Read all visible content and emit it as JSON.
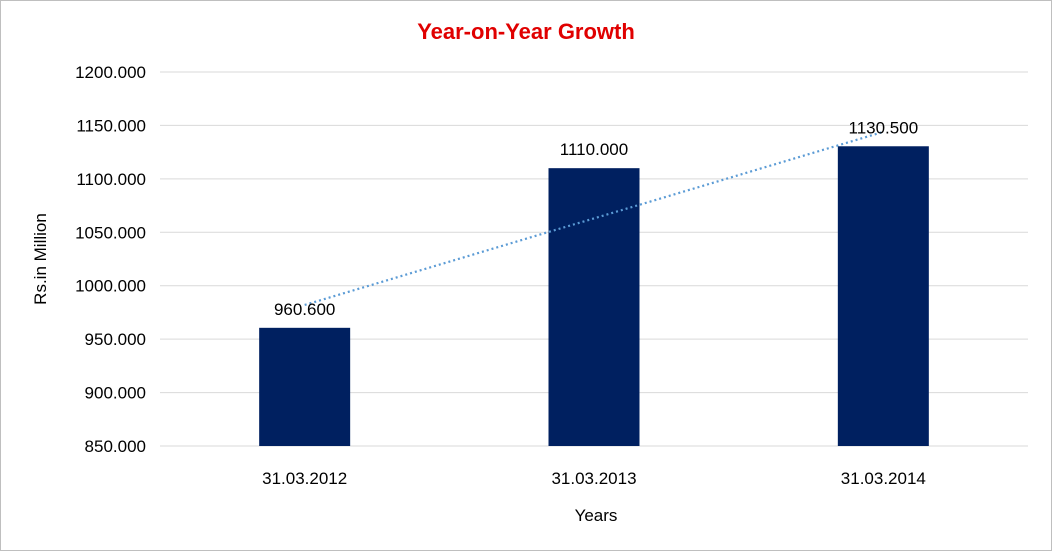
{
  "chart_data": {
    "type": "bar",
    "title": "Year-on-Year Growth",
    "xlabel": "Years",
    "ylabel": "Rs.in Million",
    "categories": [
      "31.03.2012",
      "31.03.2013",
      "31.03.2014"
    ],
    "values": [
      960.6,
      1110.0,
      1130.5
    ],
    "value_labels": [
      "960.600",
      "1110.000",
      "1130.500"
    ],
    "ylim": [
      850,
      1200
    ],
    "yticks": [
      850,
      900,
      950,
      1000,
      1050,
      1100,
      1150,
      1200
    ],
    "ytick_labels": [
      "850.000",
      "900.000",
      "950.000",
      "1000.000",
      "1050.000",
      "1100.000",
      "1150.000",
      "1200.000"
    ],
    "trendline": {
      "type": "linear",
      "style": "dotted",
      "start": 982,
      "end": 1144
    },
    "grid": true,
    "legend": "none",
    "colors": {
      "bar": "#002060",
      "title": "#e00000",
      "trendline": "#5b9bd5",
      "grid": "#d9d9d9"
    }
  }
}
